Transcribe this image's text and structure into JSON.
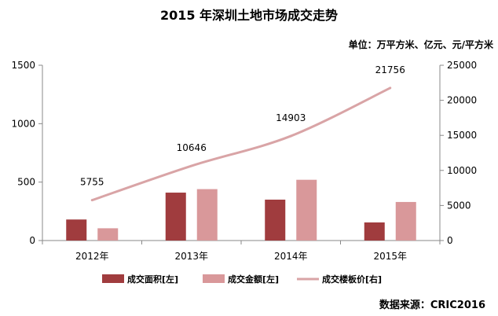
{
  "title": "2015 年深圳土地市场成交走势",
  "unit_note": "单位：万平方米、亿元、元/平方米",
  "source": "数据来源：CRIC2016",
  "colors": {
    "area": "#a03c3e",
    "amount": "#d9989a",
    "price": "#d9a4a6",
    "axis": "#888888"
  },
  "chart_data": {
    "type": "bar",
    "categories": [
      "2012年",
      "2013年",
      "2014年",
      "2015年"
    ],
    "series": [
      {
        "name": "成交面积[左]",
        "type": "bar",
        "axis": "left",
        "values": [
          180,
          410,
          350,
          155
        ]
      },
      {
        "name": "成交金额[左]",
        "type": "bar",
        "axis": "left",
        "values": [
          105,
          440,
          520,
          330
        ]
      },
      {
        "name": "成交楼板价[右]",
        "type": "line",
        "axis": "right",
        "values": [
          5755,
          10646,
          14903,
          21756
        ]
      }
    ],
    "left_axis": {
      "ylim": [
        0,
        1500
      ],
      "ticks": [
        0,
        500,
        1000,
        1500
      ]
    },
    "right_axis": {
      "ylim": [
        0,
        25000
      ],
      "ticks": [
        0,
        5000,
        10000,
        15000,
        20000,
        25000
      ]
    },
    "data_labels": [
      "5755",
      "10646",
      "14903",
      "21756"
    ],
    "legend_position": "bottom",
    "grid": false
  }
}
